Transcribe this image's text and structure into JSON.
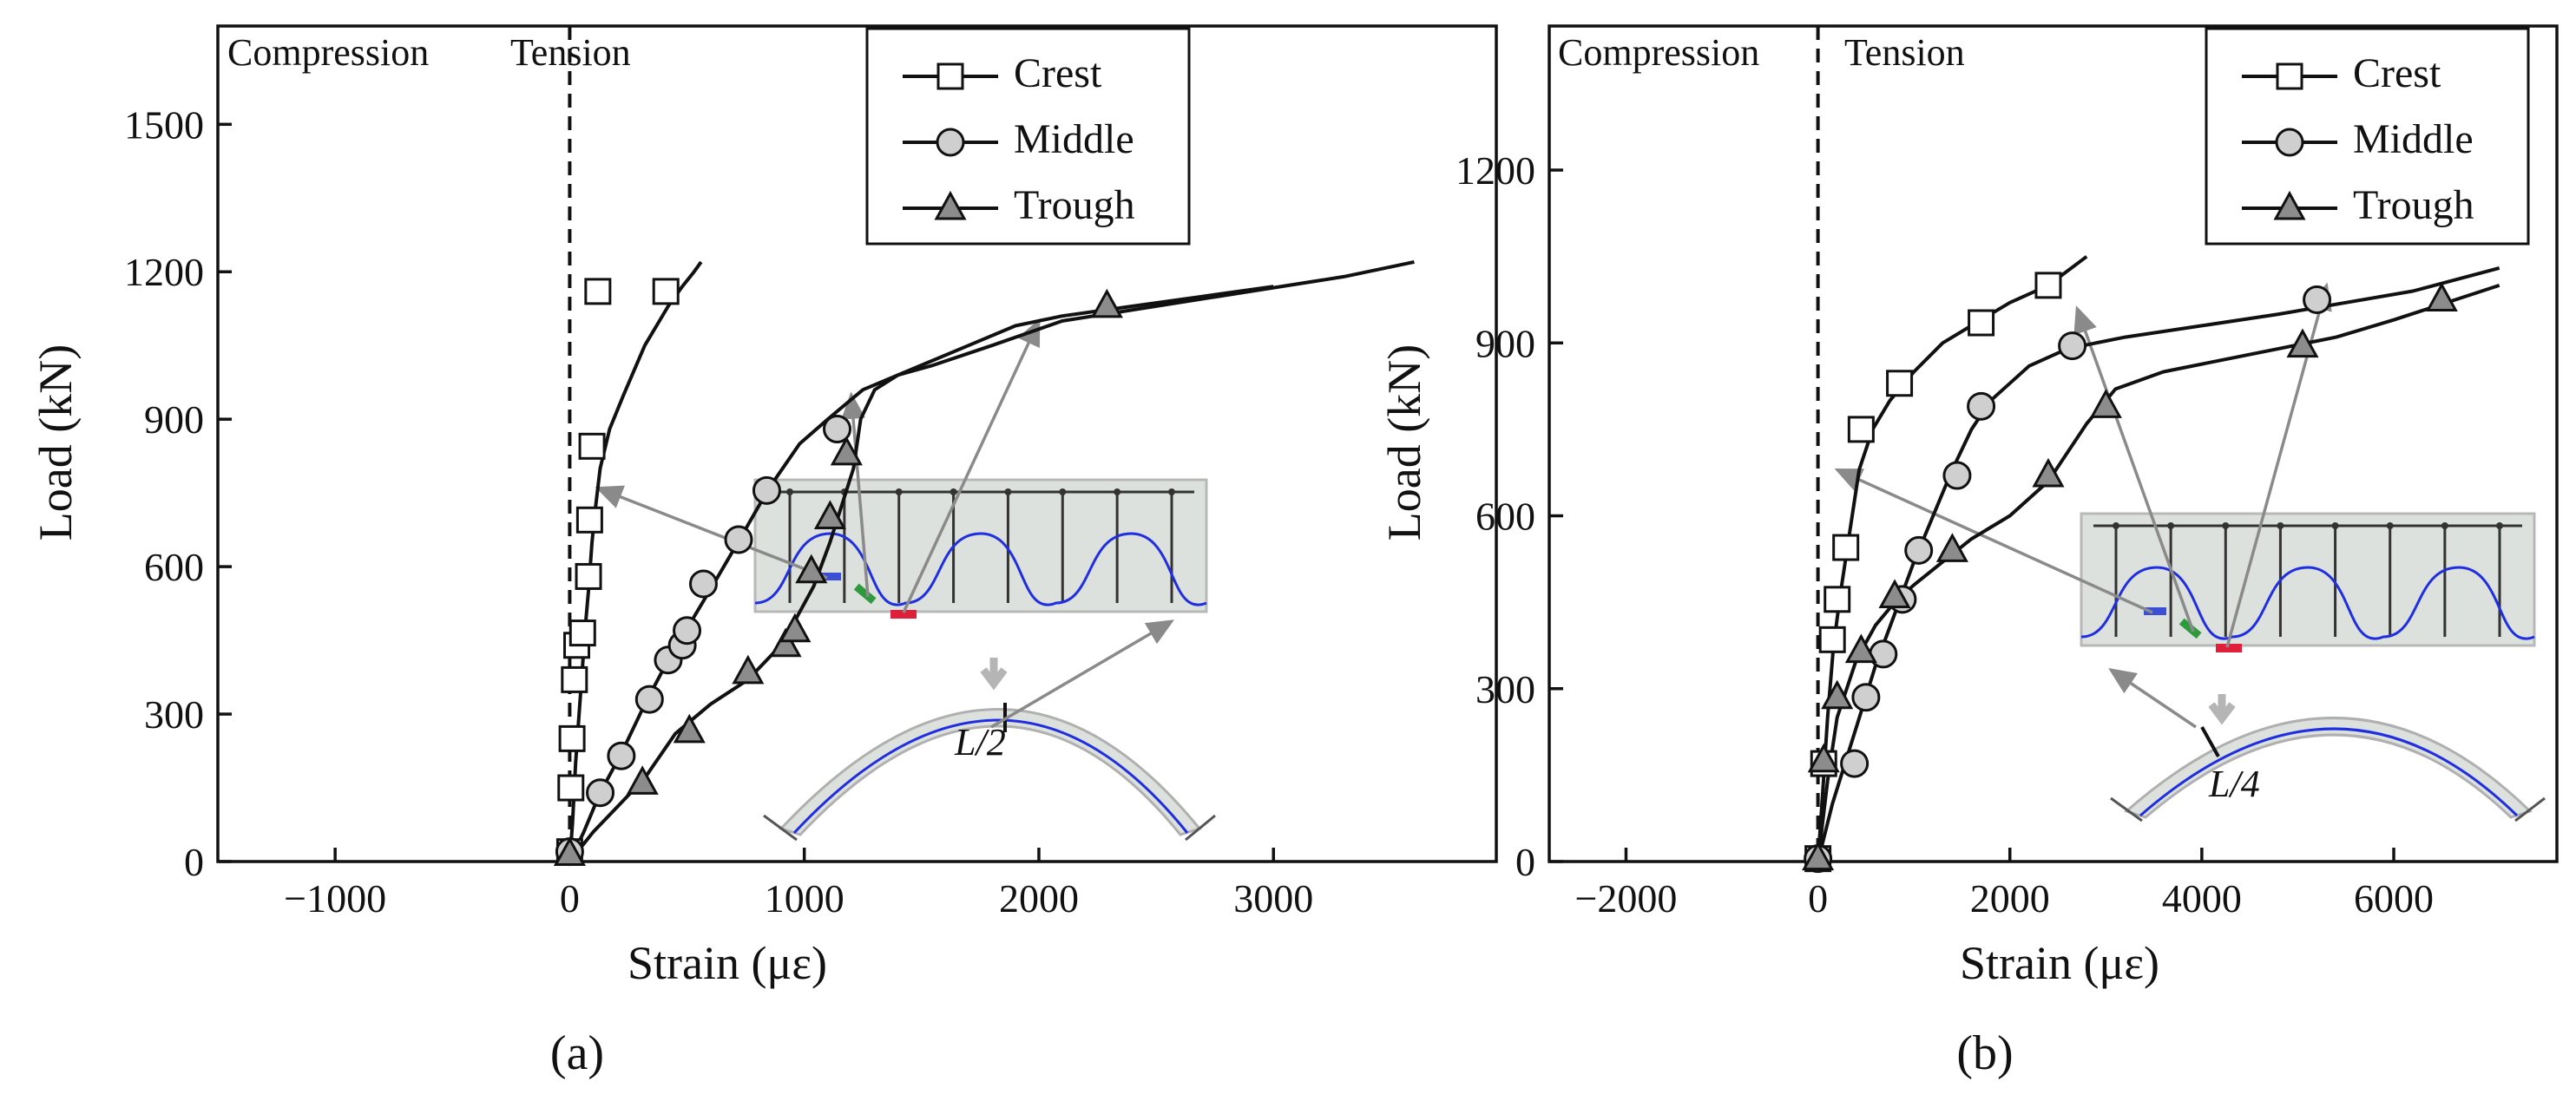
{
  "colors": {
    "ink": "#111111",
    "marker_fill_middle": "#cfcfcf",
    "marker_fill_trough": "#8c8c8c",
    "panel_fill": "#dde1dd",
    "wave_line": "#1f2ee0",
    "gauge_crest": "#3a4fd6",
    "gauge_middle": "#2e9a3e",
    "gauge_trough": "#e0203a",
    "pointer": "#8a8a8a"
  },
  "chart_data": [
    {
      "type": "line",
      "panel_label": "(a)",
      "title": "",
      "xlabel": "Strain (με)",
      "ylabel": "Load (kN)",
      "xlim": [
        -1500,
        3950
      ],
      "ylim": [
        0,
        1700
      ],
      "xticks": [
        -1000,
        0,
        1000,
        2000,
        3000
      ],
      "xtick_labels": [
        "−1000",
        "0",
        "1000",
        "2000",
        "3000"
      ],
      "yticks": [
        0,
        300,
        600,
        900,
        1200,
        1500
      ],
      "ytick_labels": [
        "0",
        "300",
        "600",
        "900",
        "1200",
        "1500"
      ],
      "region_divider_x": 0,
      "region_labels": [
        "Compression",
        "Tension"
      ],
      "legend_position": "top-right",
      "inset_label": "L/2",
      "series": [
        {
          "name": "Crest",
          "marker": "square",
          "x": [
            0,
            12,
            25,
            40,
            55,
            65,
            80,
            95,
            110,
            130,
            170,
            230,
            320,
            420,
            480,
            530,
            560
          ],
          "y": [
            0,
            80,
            200,
            300,
            400,
            470,
            550,
            650,
            720,
            800,
            880,
            950,
            1050,
            1130,
            1170,
            1200,
            1220
          ],
          "marker_x": [
            0,
            5,
            10,
            20,
            30,
            55,
            80,
            85,
            95,
            120,
            410
          ],
          "marker_y": [
            20,
            150,
            250,
            370,
            440,
            465,
            580,
            695,
            845,
            1160,
            1160
          ]
        },
        {
          "name": "Middle",
          "marker": "circle",
          "x": [
            0,
            60,
            130,
            220,
            320,
            420,
            520,
            620,
            730,
            850,
            980,
            1100,
            1200,
            1250,
            1350,
            1500,
            1700,
            1900,
            2100,
            2400,
            2700,
            3000
          ],
          "y": [
            0,
            60,
            140,
            220,
            320,
            410,
            490,
            570,
            660,
            760,
            850,
            900,
            940,
            960,
            980,
            1010,
            1050,
            1090,
            1110,
            1130,
            1150,
            1170
          ],
          "marker_x": [
            0,
            130,
            220,
            340,
            420,
            480,
            500,
            570,
            720,
            840,
            1140
          ],
          "marker_y": [
            20,
            140,
            215,
            330,
            410,
            440,
            470,
            565,
            655,
            755,
            880
          ]
        },
        {
          "name": "Trough",
          "marker": "triangle",
          "x": [
            0,
            100,
            200,
            320,
            450,
            600,
            760,
            880,
            960,
            1040,
            1110,
            1170,
            1210,
            1240,
            1300,
            1400,
            1550,
            1800,
            2100,
            2500,
            2900,
            3300,
            3600
          ],
          "y": [
            0,
            60,
            110,
            170,
            260,
            320,
            370,
            430,
            490,
            560,
            650,
            740,
            800,
            900,
            960,
            990,
            1010,
            1050,
            1100,
            1130,
            1160,
            1190,
            1220
          ],
          "marker_x": [
            0,
            310,
            510,
            760,
            920,
            960,
            1030,
            1110,
            1180,
            2290
          ],
          "marker_y": [
            15,
            160,
            265,
            385,
            440,
            470,
            590,
            700,
            830,
            1130
          ]
        }
      ]
    },
    {
      "type": "line",
      "panel_label": "(b)",
      "title": "",
      "xlabel": "Strain (με)",
      "ylabel": "Load (kN)",
      "xlim": [
        -2800,
        7700
      ],
      "ylim": [
        0,
        1450
      ],
      "xticks": [
        -2000,
        0,
        2000,
        4000,
        6000
      ],
      "xtick_labels": [
        "−2000",
        "0",
        "2000",
        "4000",
        "6000"
      ],
      "yticks": [
        0,
        300,
        600,
        900,
        1200
      ],
      "ytick_labels": [
        "0",
        "300",
        "600",
        "900",
        "1200"
      ],
      "region_divider_x": 0,
      "region_labels": [
        "Compression",
        "Tension"
      ],
      "legend_position": "top-right",
      "inset_label": "L/4",
      "series": [
        {
          "name": "Crest",
          "marker": "square",
          "x": [
            0,
            50,
            100,
            160,
            230,
            320,
            430,
            570,
            750,
            1000,
            1300,
            1650,
            2000,
            2400,
            2800
          ],
          "y": [
            0,
            120,
            250,
            370,
            460,
            560,
            680,
            750,
            800,
            850,
            900,
            935,
            970,
            1000,
            1050
          ],
          "marker_x": [
            0,
            60,
            150,
            200,
            290,
            450,
            850,
            1700,
            2400
          ],
          "marker_y": [
            5,
            170,
            385,
            455,
            545,
            750,
            830,
            935,
            1000
          ]
        },
        {
          "name": "Middle",
          "marker": "circle",
          "x": [
            0,
            150,
            300,
            450,
            600,
            800,
            1000,
            1200,
            1400,
            1600,
            1800,
            2200,
            2600,
            3200,
            4000,
            4800,
            5500,
            6200,
            7100
          ],
          "y": [
            0,
            100,
            180,
            260,
            340,
            430,
            520,
            600,
            680,
            750,
            800,
            860,
            890,
            910,
            930,
            950,
            970,
            990,
            1030
          ],
          "marker_x": [
            0,
            380,
            500,
            680,
            880,
            1050,
            1450,
            1700,
            2650,
            5200
          ],
          "marker_y": [
            5,
            170,
            285,
            360,
            455,
            540,
            670,
            790,
            895,
            975
          ]
        },
        {
          "name": "Trough",
          "marker": "triangle",
          "x": [
            0,
            100,
            200,
            400,
            600,
            800,
            1000,
            1300,
            1600,
            2000,
            2400,
            2800,
            3100,
            3600,
            4200,
            4800,
            5400,
            6000,
            7100
          ],
          "y": [
            0,
            140,
            250,
            350,
            410,
            450,
            480,
            520,
            560,
            600,
            660,
            760,
            820,
            850,
            870,
            890,
            910,
            940,
            1000
          ],
          "marker_x": [
            0,
            60,
            200,
            450,
            800,
            1400,
            2400,
            3000,
            5050,
            6500
          ],
          "marker_y": [
            5,
            175,
            285,
            365,
            460,
            540,
            670,
            790,
            895,
            975
          ]
        }
      ]
    }
  ]
}
